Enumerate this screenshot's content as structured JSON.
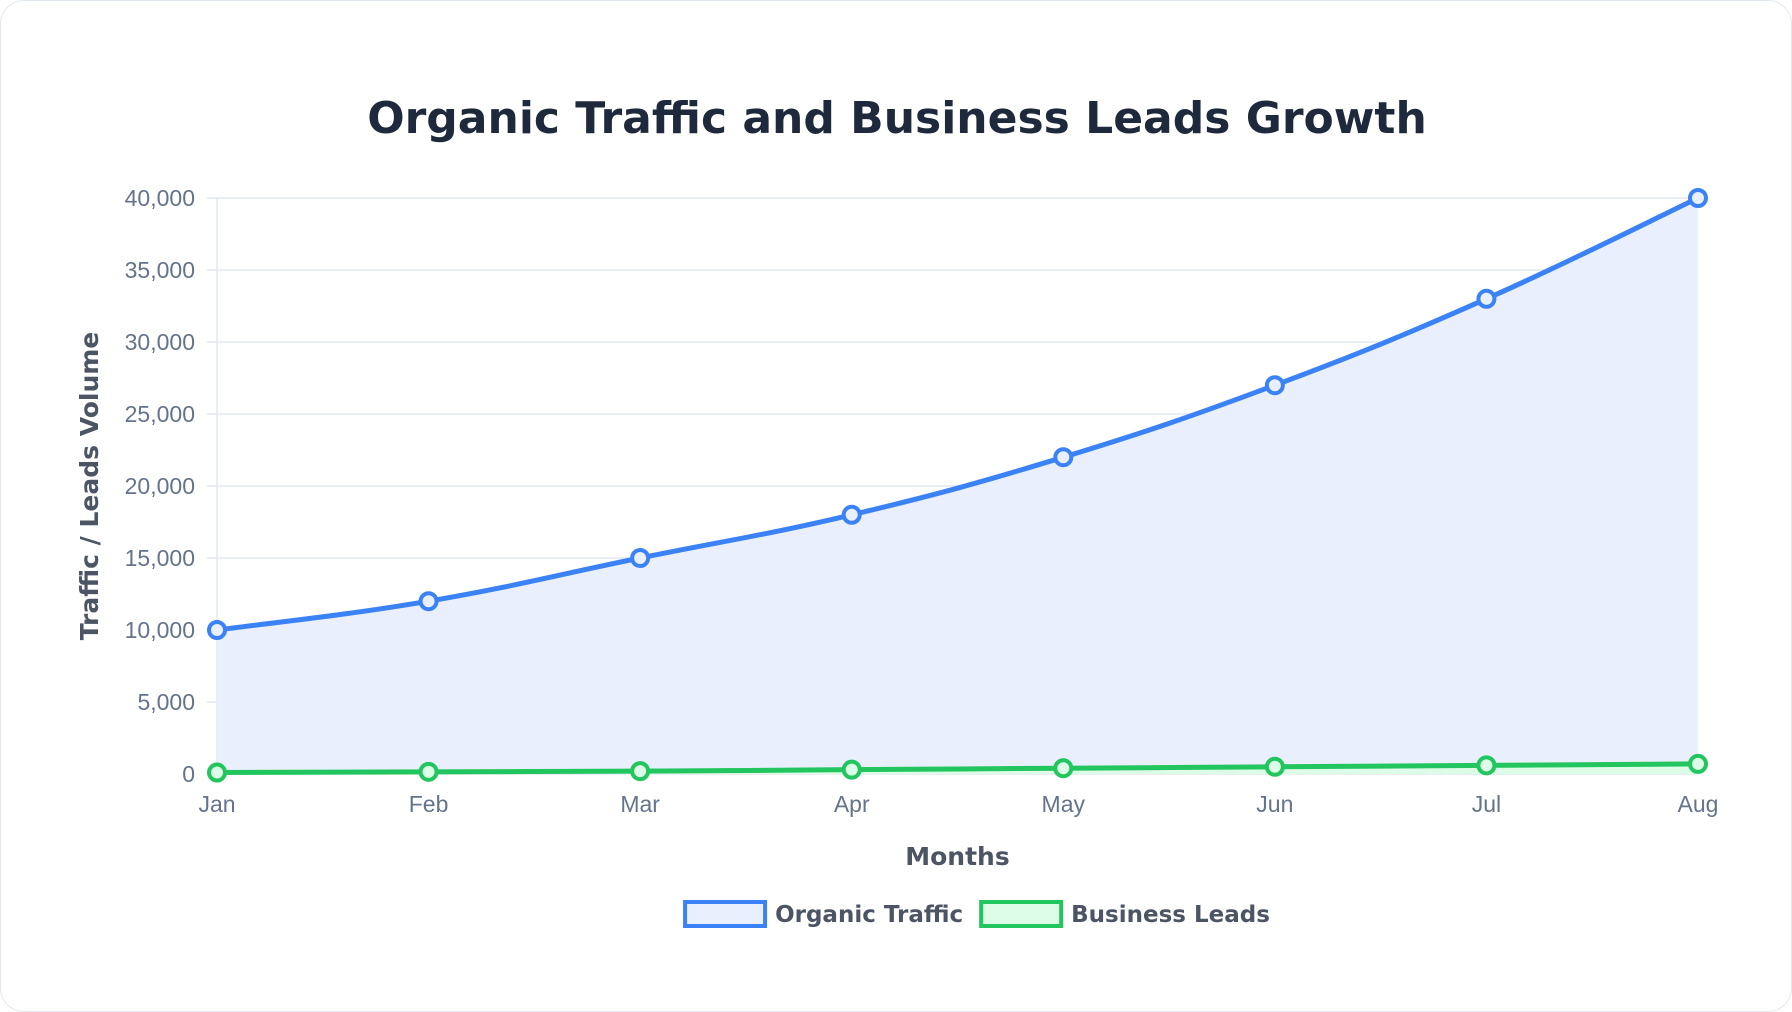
{
  "chart_data": {
    "type": "line",
    "title": "Organic Traffic and Business Leads Growth",
    "xlabel": "Months",
    "ylabel": "Traffic / Leads Volume",
    "categories": [
      "Jan",
      "Feb",
      "Mar",
      "Apr",
      "May",
      "Jun",
      "Jul",
      "Aug"
    ],
    "ylim": [
      0,
      40000
    ],
    "yticks": [
      0,
      5000,
      10000,
      15000,
      20000,
      25000,
      30000,
      35000,
      40000
    ],
    "ytick_labels": [
      "0",
      "5,000",
      "10,000",
      "15,000",
      "20,000",
      "25,000",
      "30,000",
      "35,000",
      "40,000"
    ],
    "grid": true,
    "legend_position": "bottom",
    "series": [
      {
        "name": "Organic Traffic",
        "values": [
          10000,
          12000,
          15000,
          18000,
          22000,
          27000,
          33000,
          40000
        ],
        "color": "#3b82f6",
        "fill": "#e9effc",
        "filled": true
      },
      {
        "name": "Business Leads",
        "values": [
          100,
          150,
          200,
          300,
          400,
          500,
          600,
          700
        ],
        "color": "#22c55e",
        "fill": "#dcfce7",
        "filled": true
      }
    ]
  }
}
